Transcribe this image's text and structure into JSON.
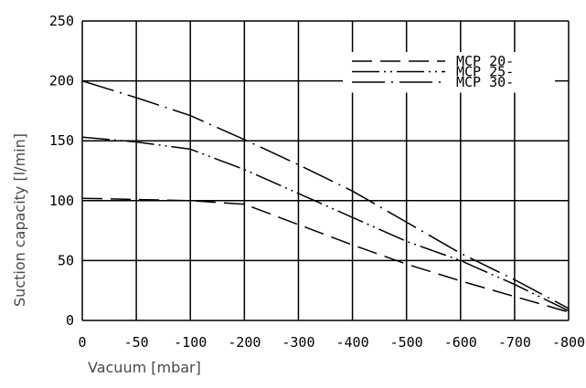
{
  "chart_data": {
    "type": "line",
    "title": "",
    "xlabel": "Vacuum [mbar]",
    "ylabel": "Suction capacity [l/min]",
    "x_ticks": [
      0,
      -50,
      -100,
      -200,
      -300,
      -400,
      -500,
      -600,
      -700,
      -800
    ],
    "x_tick_labels": [
      "0",
      "-50",
      "-100",
      "-200",
      "-300",
      "-400",
      "-500",
      "-600",
      "-700",
      "-800"
    ],
    "y_ticks": [
      0,
      50,
      100,
      150,
      200,
      250
    ],
    "y_tick_labels": [
      "0",
      "50",
      "100",
      "150",
      "200",
      "250"
    ],
    "ylim": [
      0,
      250
    ],
    "grid": true,
    "legend_position": "top-right",
    "series": [
      {
        "name": "MCP 20-",
        "dash": "dashed",
        "color": "#000000",
        "points": [
          [
            0,
            102
          ],
          [
            -50,
            101
          ],
          [
            -100,
            100
          ],
          [
            -200,
            97
          ],
          [
            -300,
            80
          ],
          [
            -400,
            63
          ],
          [
            -500,
            47
          ],
          [
            -600,
            33
          ],
          [
            -700,
            20
          ],
          [
            -800,
            7
          ]
        ]
      },
      {
        "name": "MCP 25-",
        "dash": "dash-dot-dot",
        "color": "#000000",
        "points": [
          [
            0,
            153
          ],
          [
            -50,
            149
          ],
          [
            -100,
            143
          ],
          [
            -200,
            126
          ],
          [
            -300,
            106
          ],
          [
            -400,
            86
          ],
          [
            -500,
            66
          ],
          [
            -600,
            50
          ],
          [
            -700,
            30
          ],
          [
            -800,
            8
          ]
        ]
      },
      {
        "name": "MCP 30-",
        "dash": "long-dash-dot",
        "color": "#000000",
        "points": [
          [
            0,
            200
          ],
          [
            -50,
            186
          ],
          [
            -100,
            171
          ],
          [
            -200,
            151
          ],
          [
            -300,
            130
          ],
          [
            -400,
            108
          ],
          [
            -500,
            82
          ],
          [
            -600,
            56
          ],
          [
            -700,
            34
          ],
          [
            -800,
            10
          ]
        ]
      }
    ]
  }
}
